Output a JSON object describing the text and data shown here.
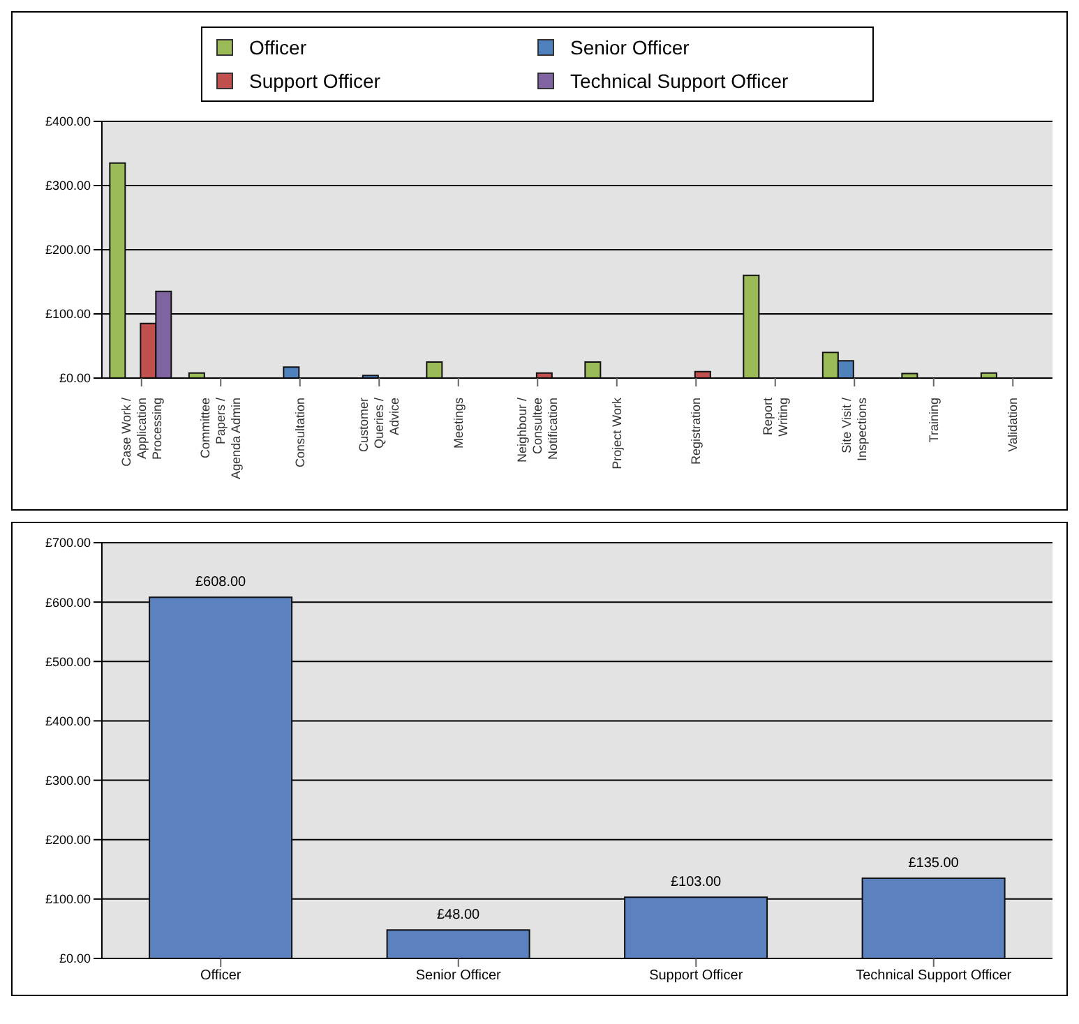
{
  "chart_data": [
    {
      "type": "bar",
      "categories": [
        "Case Work / Application Processing",
        "Committee Papers / Agenda Admin",
        "Consultation",
        "Customer Queries / Advice",
        "Meetings",
        "Neighbour / Consultee Notification",
        "Project Work",
        "Registration",
        "Report Writing",
        "Site Visit / Inspections",
        "Training",
        "Validation"
      ],
      "series": [
        {
          "name": "Officer",
          "color": "#9bbb59",
          "values": [
            335,
            8,
            null,
            null,
            25,
            null,
            25,
            null,
            160,
            40,
            7,
            8
          ]
        },
        {
          "name": "Senior Officer",
          "color": "#4f81bd",
          "values": [
            null,
            null,
            17,
            4,
            null,
            null,
            null,
            null,
            null,
            27,
            null,
            null
          ]
        },
        {
          "name": "Support Officer",
          "color": "#c0504d",
          "values": [
            85,
            null,
            null,
            null,
            null,
            8,
            null,
            10,
            null,
            null,
            null,
            null
          ]
        },
        {
          "name": "Technical Support Officer",
          "color": "#8064a2",
          "values": [
            135,
            null,
            null,
            null,
            null,
            null,
            null,
            null,
            null,
            null,
            null,
            null
          ]
        }
      ],
      "ylim": [
        0,
        400
      ],
      "yticks": [
        {
          "value": 0,
          "label": "£0.00"
        },
        {
          "value": 100,
          "label": "£100.00"
        },
        {
          "value": 200,
          "label": "£200.00"
        },
        {
          "value": 300,
          "label": "£300.00"
        },
        {
          "value": 400,
          "label": "£400.00"
        }
      ],
      "grid": "y",
      "legend": "top"
    },
    {
      "type": "bar",
      "categories": [
        "Officer",
        "Senior Officer",
        "Support Officer",
        "Technical Support Officer"
      ],
      "values": [
        608,
        48,
        103,
        135
      ],
      "color": "#5b81be",
      "value_labels": [
        "£608.00",
        "£48.00",
        "£103.00",
        "£135.00"
      ],
      "ylim": [
        0,
        700
      ],
      "yticks": [
        {
          "value": 0,
          "label": "£0.00"
        },
        {
          "value": 100,
          "label": "£100.00"
        },
        {
          "value": 200,
          "label": "£200.00"
        },
        {
          "value": 300,
          "label": "£300.00"
        },
        {
          "value": 400,
          "label": "£400.00"
        },
        {
          "value": 500,
          "label": "£500.00"
        },
        {
          "value": 600,
          "label": "£600.00"
        },
        {
          "value": 700,
          "label": "£700.00"
        }
      ],
      "grid": "y",
      "legend": false
    }
  ]
}
